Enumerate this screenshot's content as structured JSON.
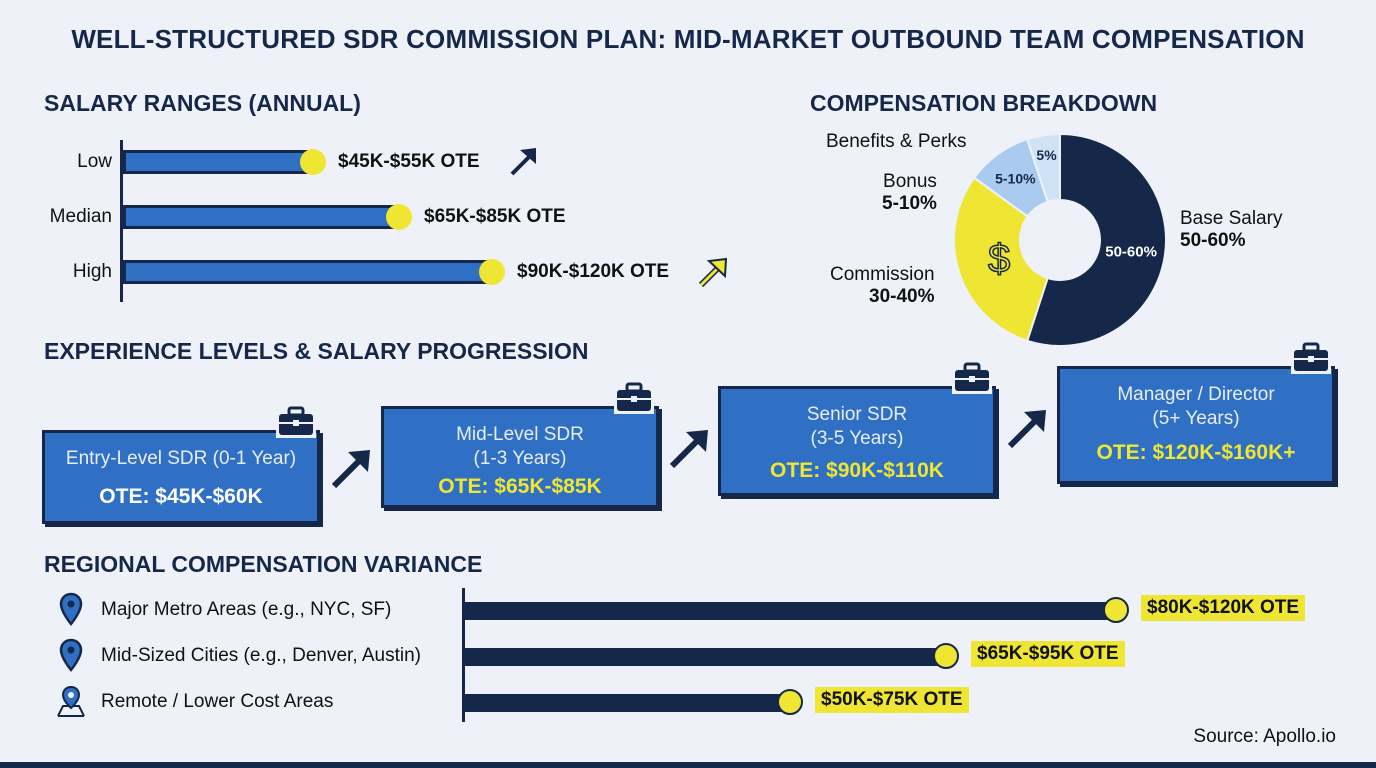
{
  "title": "WELL-STRUCTURED SDR COMMISSION PLAN: MID-MARKET OUTBOUND TEAM COMPENSATION",
  "salary": {
    "heading": "SALARY RANGES (ANNUAL)",
    "rows": [
      {
        "label": "Low",
        "value": "$45K-$55K OTE",
        "fill": 0.52
      },
      {
        "label": "Median",
        "value": "$65K-$85K OTE",
        "fill": 0.75
      },
      {
        "label": "High",
        "value": "$90K-$120K OTE",
        "fill": 1.0
      }
    ]
  },
  "breakdown": {
    "heading": "COMPENSATION BREAKDOWN",
    "slices": [
      {
        "name": "Base Salary",
        "label": "50-60%",
        "share": 55,
        "color": "#16284a"
      },
      {
        "name": "Commission",
        "label": "30-40%",
        "share": 30,
        "color": "#eee633"
      },
      {
        "name": "Bonus",
        "label": "5-10%",
        "share": 10,
        "color": "#a9cbf0"
      },
      {
        "name": "Benefits & Perks",
        "label": "5%",
        "share": 5,
        "color": "#cfe2f6"
      }
    ],
    "dollar_symbol": "$"
  },
  "experience": {
    "heading": "EXPERIENCE LEVELS & SALARY PROGRESSION",
    "levels": [
      {
        "name": "Entry-Level SDR (0-1 Year)",
        "name2": "",
        "ote": "OTE: $45K-$60K",
        "ote_color": "#ffffff"
      },
      {
        "name": "Mid-Level SDR",
        "name2": "(1-3 Years)",
        "ote": "OTE: $65K-$85K",
        "ote_color": "#eee633"
      },
      {
        "name": "Senior SDR",
        "name2": "(3-5 Years)",
        "ote": "OTE: $90K-$110K",
        "ote_color": "#eee633"
      },
      {
        "name": "Manager / Director",
        "name2": "(5+ Years)",
        "ote": "OTE: $120K-$160K+",
        "ote_color": "#eee633"
      }
    ]
  },
  "regional": {
    "heading": "REGIONAL COMPENSATION VARIANCE",
    "rows": [
      {
        "label": "Major Metro Areas (e.g., NYC, SF)",
        "value": "$80K-$120K OTE",
        "icon": "location-pin-icon",
        "fill": 1.0
      },
      {
        "label": "Mid-Sized Cities (e.g., Denver, Austin)",
        "value": "$65K-$95K OTE",
        "icon": "location-pin-icon",
        "fill": 0.74
      },
      {
        "label": "Remote / Lower Cost Areas",
        "value": "$50K-$75K OTE",
        "icon": "map-pin-icon",
        "fill": 0.5
      }
    ]
  },
  "source": "Source: Apollo.io",
  "chart_data": [
    {
      "type": "bar",
      "title": "SALARY RANGES (ANNUAL)",
      "categories": [
        "Low",
        "Median",
        "High"
      ],
      "data_labels": [
        "$45K-$55K OTE",
        "$65K-$85K OTE",
        "$90K-$120K OTE"
      ],
      "orientation": "horizontal"
    },
    {
      "type": "pie",
      "title": "COMPENSATION BREAKDOWN",
      "categories": [
        "Base Salary",
        "Commission",
        "Bonus",
        "Benefits & Perks"
      ],
      "labels": [
        "50-60%",
        "30-40%",
        "5-10%",
        "5%"
      ],
      "values": [
        55,
        30,
        10,
        5
      ],
      "donut": true
    },
    {
      "type": "bar",
      "title": "REGIONAL COMPENSATION VARIANCE",
      "categories": [
        "Major Metro Areas (e.g., NYC, SF)",
        "Mid-Sized Cities (e.g., Denver, Austin)",
        "Remote / Lower Cost Areas"
      ],
      "data_labels": [
        "$80K-$120K OTE",
        "$65K-$95K OTE",
        "$50K-$75K OTE"
      ],
      "orientation": "horizontal"
    }
  ]
}
